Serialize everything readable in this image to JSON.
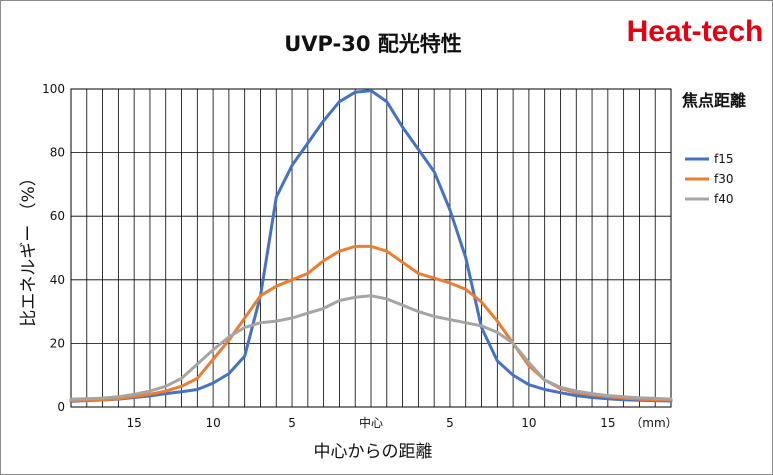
{
  "brand": "Heat-tech",
  "chart_data": {
    "type": "line",
    "title": "UVP-30 配光特性",
    "xlabel": "中心からの距離",
    "ylabel": "比エネルギー （%）",
    "x_unit_label": "（mm）",
    "ylim": [
      0,
      100
    ],
    "xlim": [
      -19,
      19
    ],
    "yticks": [
      0,
      20,
      40,
      60,
      80,
      100
    ],
    "xticks": [
      {
        "x": -15,
        "label": "15"
      },
      {
        "x": -10,
        "label": "10"
      },
      {
        "x": -5,
        "label": "5"
      },
      {
        "x": 0,
        "label": "中心"
      },
      {
        "x": 5,
        "label": "5"
      },
      {
        "x": 10,
        "label": "10"
      },
      {
        "x": 15,
        "label": "15"
      }
    ],
    "grid": "vertical lines every 1 mm, horizontal lines every 20",
    "legend_title": "焦点距離",
    "legend_position": "right",
    "series": [
      {
        "name": "f15",
        "color": "#4472c4",
        "x": [
          -19,
          -18,
          -17,
          -16,
          -15,
          -14,
          -13,
          -12,
          -11,
          -10,
          -9,
          -8,
          -7,
          -6,
          -5,
          -4,
          -3,
          -2,
          -1,
          0,
          1,
          2,
          3,
          4,
          5,
          6,
          7,
          8,
          9,
          10,
          11,
          12,
          13,
          14,
          15,
          16,
          17,
          18,
          19
        ],
        "y": [
          1.8,
          2,
          2.2,
          2.5,
          3,
          3.5,
          4.2,
          4.8,
          5.5,
          7.5,
          10.5,
          16,
          35,
          66,
          76,
          83,
          90,
          96,
          99,
          99.5,
          96,
          88,
          81,
          74,
          62,
          47,
          25,
          14.5,
          10,
          7,
          5.5,
          4.5,
          3.6,
          3,
          2.6,
          2.3,
          2.1,
          2,
          1.9
        ]
      },
      {
        "name": "f30",
        "color": "#ed7d31",
        "x": [
          -19,
          -18,
          -17,
          -16,
          -15,
          -14,
          -13,
          -12,
          -11,
          -10,
          -9,
          -8,
          -7,
          -6,
          -5,
          -4,
          -3,
          -2,
          -1,
          0,
          1,
          2,
          3,
          4,
          5,
          6,
          7,
          8,
          9,
          10,
          11,
          12,
          13,
          14,
          15,
          16,
          17,
          18,
          19
        ],
        "y": [
          2,
          2.1,
          2.3,
          2.6,
          3.3,
          4,
          5,
          6.5,
          9,
          15,
          21,
          28,
          35,
          38,
          40,
          42,
          46,
          49,
          50.5,
          50.5,
          49,
          45.5,
          42,
          40.5,
          39,
          37,
          33,
          27,
          20,
          13,
          8.5,
          5.8,
          4.5,
          3.8,
          3.2,
          2.8,
          2.5,
          2.3,
          2.2
        ]
      },
      {
        "name": "f40",
        "color": "#a5a5a5",
        "x": [
          -19,
          -18,
          -17,
          -16,
          -15,
          -14,
          -13,
          -12,
          -11,
          -10,
          -9,
          -8,
          -7,
          -6,
          -5,
          -4,
          -3,
          -2,
          -1,
          0,
          1,
          2,
          3,
          4,
          5,
          6,
          7,
          8,
          9,
          10,
          11,
          12,
          13,
          14,
          15,
          16,
          17,
          18,
          19
        ],
        "y": [
          2.5,
          2.6,
          2.8,
          3.2,
          4,
          5,
          6.5,
          9,
          13.5,
          18,
          22,
          25,
          26.5,
          27,
          28,
          29.5,
          31,
          33.5,
          34.5,
          35,
          34,
          32,
          30,
          28.5,
          27.5,
          26.5,
          25.5,
          23.5,
          20,
          14,
          8.5,
          6.2,
          5,
          4.2,
          3.6,
          3.2,
          2.9,
          2.7,
          2.5
        ]
      }
    ]
  }
}
